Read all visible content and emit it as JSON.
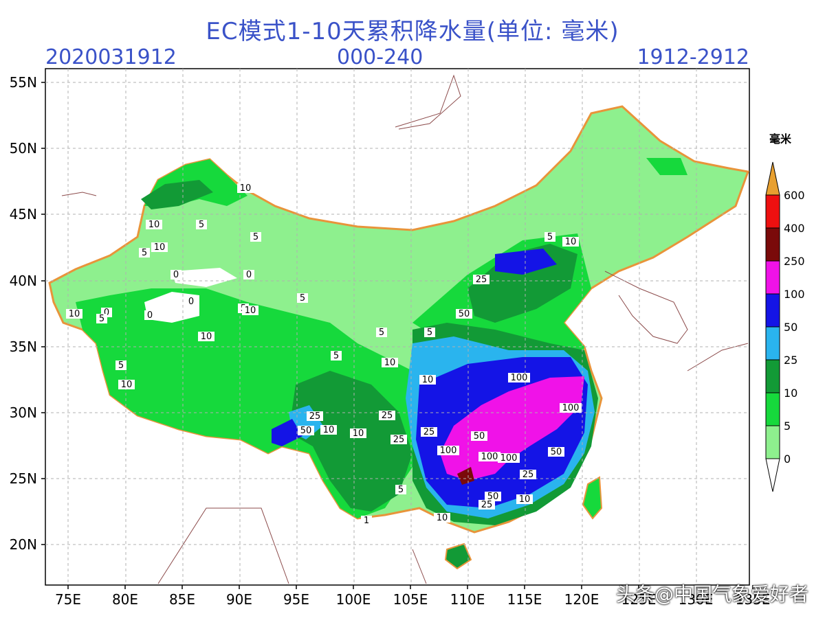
{
  "header": {
    "title": "EC模式1-10天累积降水量(单位: 毫米)",
    "init_time": "2020031912",
    "forecast_hours": "000-240",
    "valid_range": "1912-2912"
  },
  "axes": {
    "lat_ticks": [
      "55N",
      "50N",
      "45N",
      "40N",
      "35N",
      "30N",
      "25N",
      "20N"
    ],
    "lon_ticks": [
      "75E",
      "80E",
      "85E",
      "90E",
      "95E",
      "100E",
      "105E",
      "110E",
      "115E",
      "120E",
      "125E",
      "130E",
      "135E"
    ]
  },
  "legend": {
    "unit": "毫米",
    "levels": [
      {
        "label": "0",
        "color": "#8ef08e"
      },
      {
        "label": "5",
        "color": "#16d93c"
      },
      {
        "label": "10",
        "color": "#129a36"
      },
      {
        "label": "25",
        "color": "#2ab4ee"
      },
      {
        "label": "50",
        "color": "#1414e6"
      },
      {
        "label": "100",
        "color": "#f012e8"
      },
      {
        "label": "250",
        "color": "#7a0a0a"
      },
      {
        "label": "400",
        "color": "#ee1010"
      },
      {
        "label": "600",
        "color": "#e8a030"
      }
    ]
  },
  "contour_labels": [
    "10",
    "5",
    "10",
    "5",
    "0",
    "0",
    "0",
    "0",
    "0",
    "10",
    "5",
    "5",
    "10",
    "5",
    "10",
    "5",
    "10",
    "5",
    "5",
    "25",
    "50",
    "10",
    "10",
    "25",
    "25",
    "50",
    "100",
    "100",
    "100",
    "100",
    "100",
    "50",
    "25",
    "50",
    "25",
    "10",
    "10",
    "5",
    "5",
    "10",
    "25",
    "50",
    "25",
    "10",
    "5",
    "10",
    "5",
    "10",
    "1"
  ],
  "watermark": "头条@中国气象爱好者"
}
